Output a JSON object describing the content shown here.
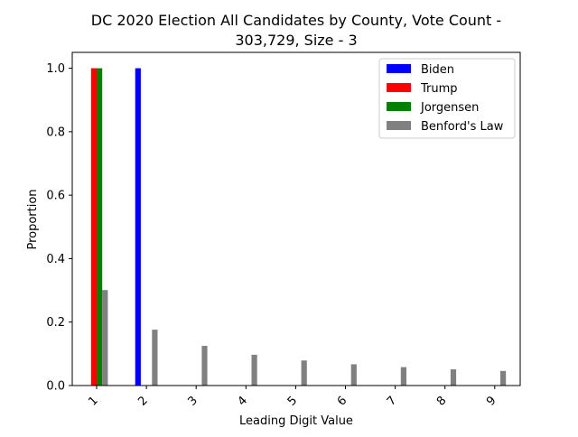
{
  "chart_data": {
    "type": "bar",
    "title_line1": "DC 2020 Election All Candidates by County, Vote Count -",
    "title_line2": "303,729, Size - 3",
    "xlabel": "Leading Digit Value",
    "ylabel": "Proportion",
    "categories": [
      "1",
      "2",
      "3",
      "4",
      "5",
      "6",
      "7",
      "8",
      "9"
    ],
    "ylim": [
      0,
      1.05
    ],
    "yticks": [
      0.0,
      0.2,
      0.4,
      0.6,
      0.8,
      1.0
    ],
    "ytick_labels": [
      "0.0",
      "0.2",
      "0.4",
      "0.6",
      "0.8",
      "1.0"
    ],
    "legend_position": "top-right",
    "grid": false,
    "series": [
      {
        "name": "Biden",
        "color": "#0000ff",
        "values": [
          0,
          1.0,
          0,
          0,
          0,
          0,
          0,
          0,
          0
        ]
      },
      {
        "name": "Trump",
        "color": "#ff0000",
        "values": [
          1.0,
          0,
          0,
          0,
          0,
          0,
          0,
          0,
          0
        ]
      },
      {
        "name": "Jorgensen",
        "color": "#008000",
        "values": [
          1.0,
          0,
          0,
          0,
          0,
          0,
          0,
          0,
          0
        ]
      },
      {
        "name": "Benford's Law",
        "color": "#808080",
        "values": [
          0.301,
          0.176,
          0.125,
          0.097,
          0.079,
          0.067,
          0.058,
          0.051,
          0.046
        ]
      }
    ]
  }
}
